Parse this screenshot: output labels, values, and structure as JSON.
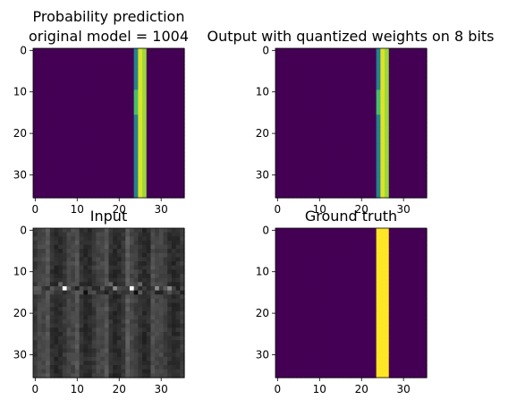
{
  "chart_data": [
    {
      "type": "heatmap",
      "title_lines": [
        "Probability prediction",
        "original model = 1004"
      ],
      "grid_size": [
        36,
        36
      ],
      "xticks": [
        0,
        10,
        20,
        30
      ],
      "yticks": [
        0,
        10,
        20,
        30
      ],
      "colormap": "viridis",
      "background_value": 0.0,
      "columns": [
        {
          "x": 24,
          "value": 0.45
        },
        {
          "x": 25,
          "value": 0.95
        },
        {
          "x": 26,
          "value": 0.85
        }
      ],
      "highlight": {
        "x": 24,
        "rows": [
          10,
          15
        ],
        "value": 0.7
      }
    },
    {
      "type": "heatmap",
      "title_lines": [
        "Output with quantized weights on 8 bits"
      ],
      "grid_size": [
        36,
        36
      ],
      "xticks": [
        0,
        10,
        20,
        30
      ],
      "yticks": [
        0,
        10,
        20,
        30
      ],
      "colormap": "viridis",
      "background_value": 0.0,
      "columns": [
        {
          "x": 24,
          "value": 0.45
        },
        {
          "x": 25,
          "value": 0.95
        },
        {
          "x": 26,
          "value": 0.85
        }
      ],
      "highlight": {
        "x": 24,
        "rows": [
          10,
          15
        ],
        "value": 0.7
      }
    },
    {
      "type": "heatmap",
      "title_lines": [
        "Input"
      ],
      "grid_size": [
        36,
        36
      ],
      "xticks": [
        0,
        10,
        20,
        30
      ],
      "yticks": [
        0,
        10,
        20,
        30
      ],
      "colormap": "gray",
      "description": "grayscale texture with a bright horizontal seam near row 14"
    },
    {
      "type": "heatmap",
      "title_lines": [
        "Ground truth"
      ],
      "grid_size": [
        36,
        36
      ],
      "xticks": [
        0,
        10,
        20,
        30
      ],
      "yticks": [
        0,
        10,
        20,
        30
      ],
      "colormap": "viridis",
      "background_value": 0.0,
      "columns": [
        {
          "x": 24,
          "value": 1.0
        },
        {
          "x": 25,
          "value": 1.0
        },
        {
          "x": 26,
          "value": 1.0
        }
      ]
    }
  ]
}
